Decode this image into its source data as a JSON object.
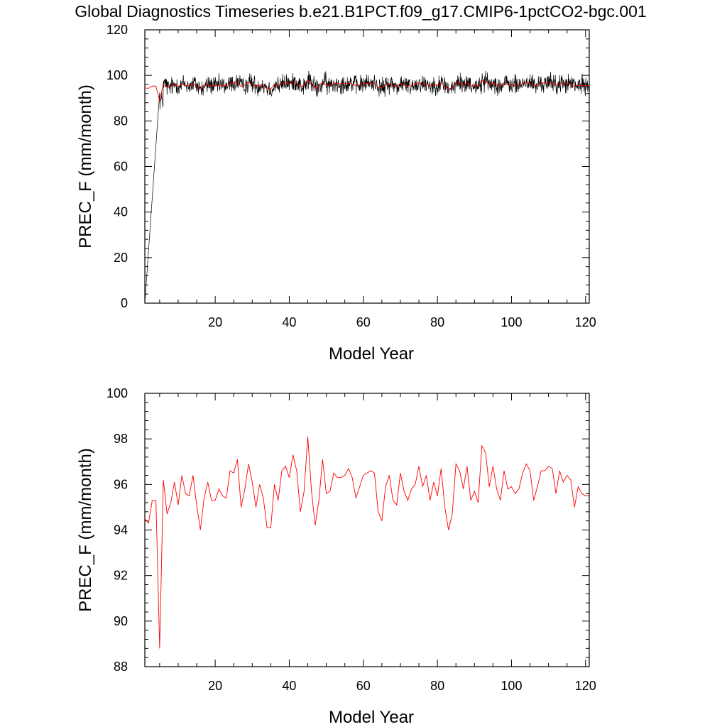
{
  "page": {
    "title": "Global Diagnostics Timeseries b.e21.B1PCT.f09_g17.CMIP6-1pctCO2-bgc.001"
  },
  "chart_data": [
    {
      "type": "line",
      "xlabel": "Model Year",
      "ylabel": "PREC_F (mm/month)",
      "xlim": [
        1,
        121
      ],
      "ylim": [
        0,
        120
      ],
      "xticks": [
        20,
        40,
        60,
        80,
        100,
        120
      ],
      "yticks": [
        0,
        20,
        40,
        60,
        80,
        100,
        120
      ],
      "grid": false,
      "series": [
        {
          "kind": "monthly",
          "color": "#000000",
          "description_values": "monthly values fluctuating about 93-99 mm/month, rising from 0 at year 1 to ~95 by year 5",
          "start": [
            [
              1,
              0
            ],
            [
              5,
              92.5
            ]
          ],
          "monthly_mean": 95.8,
          "monthly_amplitude": 3.2
        },
        {
          "kind": "annual",
          "color": "#ff0000",
          "x": [
            1,
            2,
            3,
            4,
            5,
            6,
            7,
            8,
            9,
            10,
            11,
            12,
            13,
            14,
            15,
            16,
            17,
            18,
            19,
            20,
            21,
            22,
            23,
            24,
            25,
            26,
            27,
            28,
            29,
            30,
            31,
            32,
            33,
            34,
            35,
            36,
            37,
            38,
            39,
            40,
            41,
            42,
            43,
            44,
            45,
            46,
            47,
            48,
            49,
            50,
            51,
            52,
            53,
            54,
            55,
            56,
            57,
            58,
            59,
            60,
            61,
            62,
            63,
            64,
            65,
            66,
            67,
            68,
            69,
            70,
            71,
            72,
            73,
            74,
            75,
            76,
            77,
            78,
            79,
            80,
            81,
            82,
            83,
            84,
            85,
            86,
            87,
            88,
            89,
            90,
            91,
            92,
            93,
            94,
            95,
            96,
            97,
            98,
            99,
            100,
            101,
            102,
            103,
            104,
            105,
            106,
            107,
            108,
            109,
            110,
            111,
            112,
            113,
            114,
            115,
            116,
            117,
            118,
            119,
            120,
            121
          ],
          "values": [
            94.5,
            94.3,
            95.3,
            95.3,
            88.8,
            96.2,
            94.7,
            95.2,
            96.1,
            95.1,
            96.4,
            95.6,
            95.5,
            96.4,
            95.1,
            94.0,
            95.4,
            96.1,
            95.3,
            95.3,
            95.8,
            95.5,
            95.4,
            96.6,
            96.5,
            97.1,
            95.0,
            95.8,
            96.9,
            96.1,
            95.0,
            96.0,
            95.4,
            94.1,
            94.1,
            96.0,
            95.3,
            96.6,
            96.8,
            96.3,
            97.3,
            96.6,
            94.8,
            95.7,
            98.1,
            95.7,
            94.2,
            95.3,
            97.1,
            95.6,
            95.7,
            96.5,
            96.3,
            96.3,
            96.4,
            96.7,
            96.3,
            95.4,
            95.9,
            96.4,
            96.5,
            96.6,
            96.5,
            94.8,
            94.4,
            95.9,
            96.4,
            95.3,
            95.1,
            96.5,
            95.7,
            95.3,
            95.8,
            96.0,
            96.8,
            95.9,
            96.4,
            95.3,
            96.1,
            95.5,
            96.7,
            95.0,
            94.0,
            94.7,
            96.9,
            96.6,
            95.8,
            96.8,
            95.3,
            95.7,
            95.2,
            97.7,
            97.4,
            95.9,
            96.8,
            95.8,
            95.3,
            96.6,
            95.8,
            95.9,
            95.6,
            95.8,
            96.5,
            96.9,
            96.6,
            95.3,
            95.9,
            96.6,
            96.6,
            96.8,
            96.7,
            95.6,
            96.6,
            96.1,
            96.4,
            96.2,
            95.0,
            95.9,
            95.6,
            95.5,
            95.5
          ]
        }
      ]
    },
    {
      "type": "line",
      "xlabel": "Model Year",
      "ylabel": "PREC_F (mm/month)",
      "xlim": [
        1,
        121
      ],
      "ylim": [
        88,
        100
      ],
      "xticks": [
        20,
        40,
        60,
        80,
        100,
        120
      ],
      "yticks": [
        88,
        90,
        92,
        94,
        96,
        98,
        100
      ],
      "grid": false,
      "series": [
        {
          "kind": "annual",
          "color": "#ff0000",
          "use_values_of_panel": 0,
          "series_index": 1
        }
      ]
    }
  ]
}
